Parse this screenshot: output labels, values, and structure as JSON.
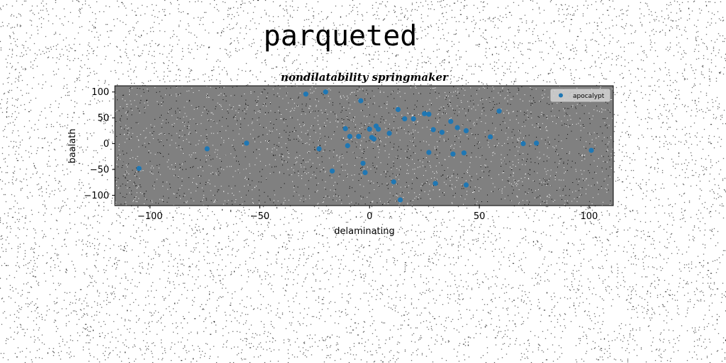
{
  "figure": {
    "suptitle": "parqueted"
  },
  "chart_data": {
    "type": "scatter",
    "title": "nondilatability springmaker",
    "xlabel": "delaminating",
    "ylabel": "baalath",
    "xlim": [
      -116,
      111
    ],
    "ylim": [
      -120,
      112
    ],
    "xticks": [
      -100,
      -50,
      0,
      50,
      100
    ],
    "yticks": [
      100,
      50,
      0,
      -50,
      -100
    ],
    "xtick_labels": [
      "−100",
      "−50",
      "0",
      "50",
      "100"
    ],
    "ytick_labels": [
      "100",
      "50",
      "0",
      "−50",
      "−100"
    ],
    "grid": false,
    "legend_position": "top-right",
    "plot_background": "#808080",
    "series": [
      {
        "name": "apocalypt",
        "color": "#1f77b4",
        "points": [
          [
            -105,
            -48
          ],
          [
            -74,
            -10
          ],
          [
            -56,
            1
          ],
          [
            -29,
            96
          ],
          [
            -20,
            100
          ],
          [
            -23,
            -10
          ],
          [
            -17,
            -53
          ],
          [
            -11,
            29
          ],
          [
            -10,
            -4
          ],
          [
            -9,
            14
          ],
          [
            -5,
            14
          ],
          [
            -4,
            83
          ],
          [
            -3,
            -38
          ],
          [
            -2,
            -56
          ],
          [
            0,
            28
          ],
          [
            1,
            12
          ],
          [
            2,
            9
          ],
          [
            3,
            34
          ],
          [
            4,
            28
          ],
          [
            9,
            20
          ],
          [
            11,
            -74
          ],
          [
            13,
            66
          ],
          [
            14,
            -109
          ],
          [
            16,
            48
          ],
          [
            20,
            48
          ],
          [
            25,
            58
          ],
          [
            27,
            57
          ],
          [
            27,
            -17
          ],
          [
            29,
            27
          ],
          [
            30,
            -77
          ],
          [
            33,
            22
          ],
          [
            37,
            43
          ],
          [
            38,
            -20
          ],
          [
            40,
            31
          ],
          [
            43,
            -18
          ],
          [
            44,
            25
          ],
          [
            44,
            -80
          ],
          [
            55,
            13
          ],
          [
            59,
            63
          ],
          [
            70,
            0
          ],
          [
            76,
            1
          ],
          [
            101,
            -13
          ]
        ]
      }
    ]
  }
}
